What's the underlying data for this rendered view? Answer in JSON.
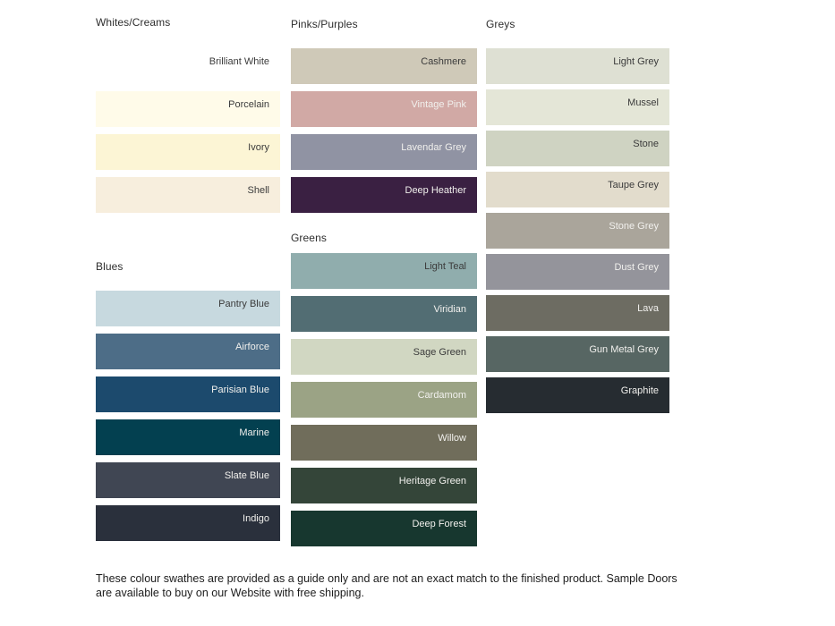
{
  "page": {
    "background": "#ffffff",
    "label_colors": {
      "dark": "#3b3b3b",
      "light": "#f1f0ed"
    }
  },
  "sections": [
    {
      "title": "Whites/Creams",
      "swatches": [
        {
          "label": "Brilliant White",
          "hex": "#ffffff",
          "text": "dark"
        },
        {
          "label": "Porcelain",
          "hex": "#fffbe9",
          "text": "dark"
        },
        {
          "label": "Ivory",
          "hex": "#fcf5d5",
          "text": "dark"
        },
        {
          "label": "Shell",
          "hex": "#f7eedd",
          "text": "dark"
        }
      ]
    },
    {
      "title": "Blues",
      "swatches": [
        {
          "label": "Pantry Blue",
          "hex": "#c7d9df",
          "text": "dark"
        },
        {
          "label": "Airforce",
          "hex": "#4d6d87",
          "text": "light"
        },
        {
          "label": "Parisian Blue",
          "hex": "#1c4a6d",
          "text": "light"
        },
        {
          "label": "Marine",
          "hex": "#034050",
          "text": "light"
        },
        {
          "label": "Slate Blue",
          "hex": "#404653",
          "text": "light"
        },
        {
          "label": "Indigo",
          "hex": "#2a303c",
          "text": "light"
        }
      ]
    },
    {
      "title": "Pinks/Purples",
      "swatches": [
        {
          "label": "Cashmere",
          "hex": "#cfc9b8",
          "text": "dark"
        },
        {
          "label": "Vintage Pink",
          "hex": "#d1a9a5",
          "text": "light"
        },
        {
          "label": "Lavendar Grey",
          "hex": "#9093a3",
          "text": "light"
        },
        {
          "label": "Deep Heather",
          "hex": "#3a2042",
          "text": "light"
        }
      ]
    },
    {
      "title": "Greens",
      "swatches": [
        {
          "label": "Light Teal",
          "hex": "#90adad",
          "text": "dark"
        },
        {
          "label": "Viridian",
          "hex": "#526d73",
          "text": "light"
        },
        {
          "label": "Sage Green",
          "hex": "#d1d7c2",
          "text": "dark"
        },
        {
          "label": "Cardamom",
          "hex": "#9ba385",
          "text": "light"
        },
        {
          "label": "Willow",
          "hex": "#706d5b",
          "text": "light"
        },
        {
          "label": "Heritage Green",
          "hex": "#344539",
          "text": "light"
        },
        {
          "label": "Deep Forest",
          "hex": "#17372f",
          "text": "light"
        }
      ]
    },
    {
      "title": "Greys",
      "swatches": [
        {
          "label": "Light Grey",
          "hex": "#dee0d3",
          "text": "dark"
        },
        {
          "label": "Mussel",
          "hex": "#e4e6d7",
          "text": "dark"
        },
        {
          "label": "Stone",
          "hex": "#cfd3c2",
          "text": "dark"
        },
        {
          "label": "Taupe Grey",
          "hex": "#e2dccc",
          "text": "dark"
        },
        {
          "label": "Stone Grey",
          "hex": "#aaa59b",
          "text": "light"
        },
        {
          "label": "Dust Grey",
          "hex": "#94949b",
          "text": "light"
        },
        {
          "label": "Lava",
          "hex": "#6d6c62",
          "text": "light"
        },
        {
          "label": "Gun Metal Grey",
          "hex": "#576663",
          "text": "light"
        },
        {
          "label": "Graphite",
          "hex": "#262c31",
          "text": "light"
        }
      ]
    }
  ],
  "footer": {
    "text": "These colour swathes are provided as a guide only and are not an exact match to the finished product.  Sample Doors are available to buy on our Website with free shipping."
  }
}
